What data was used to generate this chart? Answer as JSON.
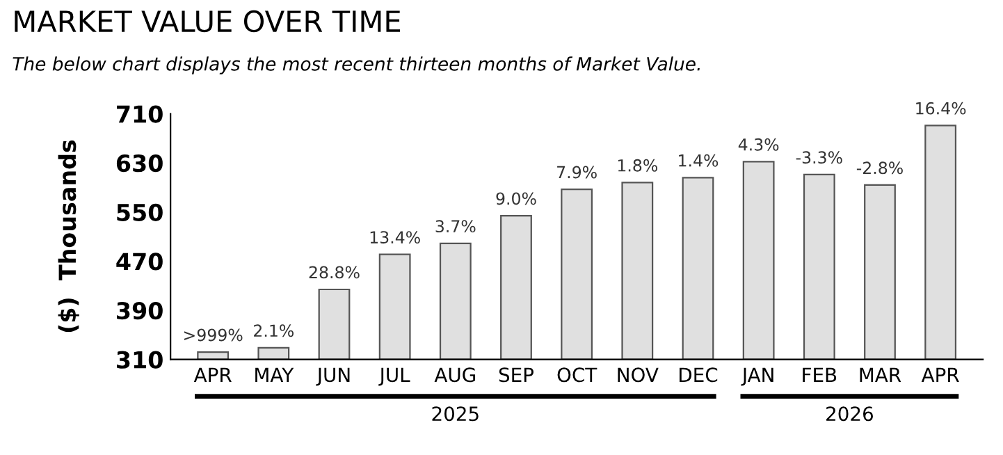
{
  "chart_data": {
    "type": "bar",
    "title": "MARKET VALUE OVER TIME",
    "subtitle": "The below chart displays the most recent thirteen months of Market Value.",
    "ylabel": "($)  Thousands",
    "categories": [
      "APR",
      "MAY",
      "JUN",
      "JUL",
      "AUG",
      "SEP",
      "OCT",
      "NOV",
      "DEC",
      "JAN",
      "FEB",
      "MAR",
      "APR"
    ],
    "values": [
      322,
      329,
      424,
      481,
      499,
      544,
      587,
      598,
      606,
      632,
      611,
      594,
      691
    ],
    "color": "#e0e0e0",
    "ylim": [
      310,
      710
    ],
    "yticks": [
      310,
      390,
      470,
      550,
      630,
      710
    ],
    "grid": false,
    "annotations": [
      {
        "text": ">999%",
        "x": "APR",
        "y": 322
      },
      {
        "text": "2.1%",
        "x": "MAY",
        "y": 329
      },
      {
        "text": "28.8%",
        "x": "JUN",
        "y": 424
      },
      {
        "text": "13.4%",
        "x": "JUL",
        "y": 481
      },
      {
        "text": "3.7%",
        "x": "AUG",
        "y": 499
      },
      {
        "text": "9.0%",
        "x": "SEP",
        "y": 544
      },
      {
        "text": "7.9%",
        "x": "OCT",
        "y": 587
      },
      {
        "text": "1.8%",
        "x": "NOV",
        "y": 598
      },
      {
        "text": "1.4%",
        "x": "DEC",
        "y": 606
      },
      {
        "text": "4.3%",
        "x": "JAN",
        "y": 632
      },
      {
        "text": "-3.3%",
        "x": "FEB",
        "y": 611
      },
      {
        "text": "-2.8%",
        "x": "MAR",
        "y": 594
      },
      {
        "text": "16.4%",
        "y": 691
      },
      "2025",
      "2026"
    ]
  }
}
